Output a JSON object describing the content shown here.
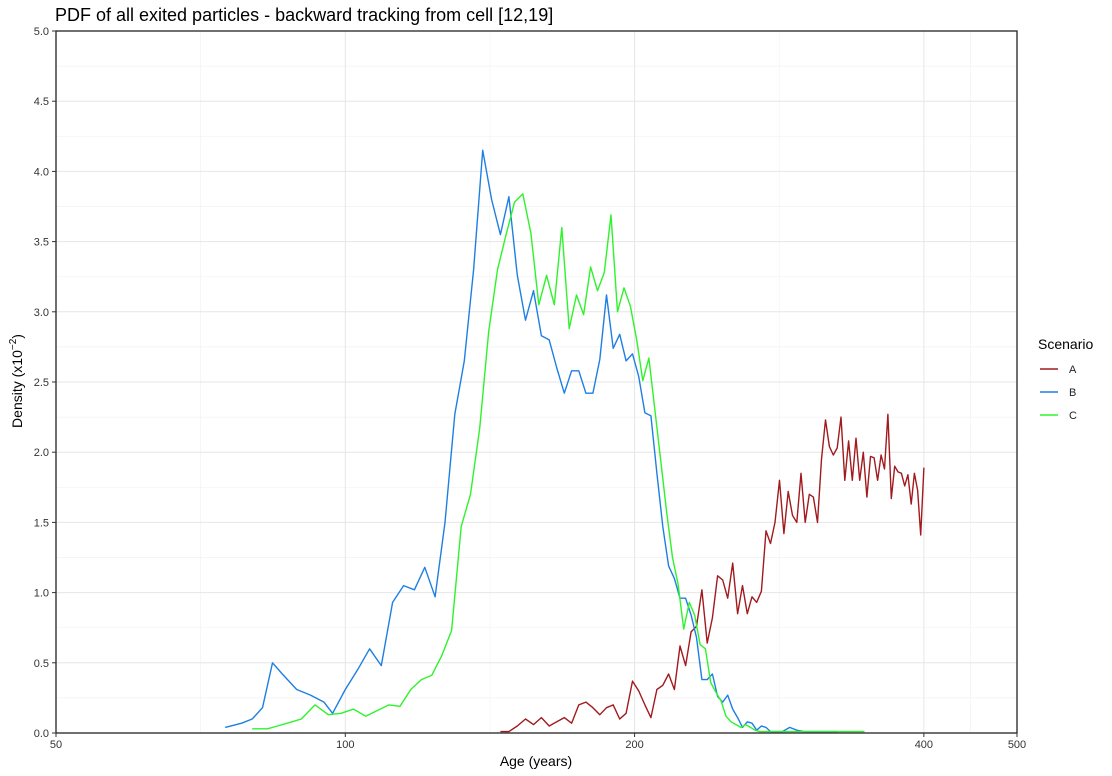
{
  "chart_data": {
    "type": "line",
    "title": "PDF of all exited particles - backward tracking from cell [12,19]",
    "xlabel": "Age (years)",
    "ylabel_main": "Density (x10",
    "ylabel_sup": "−2",
    "ylabel_end": ")",
    "x_scale": "log",
    "xlim": [
      50,
      500
    ],
    "ylim": [
      0,
      5
    ],
    "x_ticks": [
      50,
      100,
      200,
      400,
      500
    ],
    "x_tick_labels": [
      "50",
      "100",
      "200",
      "400",
      "500"
    ],
    "y_ticks": [
      0,
      0.5,
      1,
      1.5,
      2,
      2.5,
      3,
      3.5,
      4,
      4.5,
      5
    ],
    "y_tick_labels": [
      "0.0",
      "0.5",
      "1.0",
      "1.5",
      "2.0",
      "2.5",
      "3.0",
      "3.5",
      "4.0",
      "4.5",
      "5.0"
    ],
    "grid": true,
    "legend": {
      "title": "Scenario",
      "position": "right"
    },
    "series": [
      {
        "name": "A",
        "color": "#a11a1e",
        "points": [
          [
            145,
            0.01
          ],
          [
            148,
            0.01
          ],
          [
            151,
            0.05
          ],
          [
            154,
            0.1
          ],
          [
            157,
            0.06
          ],
          [
            160,
            0.11
          ],
          [
            163,
            0.05
          ],
          [
            166,
            0.08
          ],
          [
            169,
            0.11
          ],
          [
            172,
            0.07
          ],
          [
            175,
            0.2
          ],
          [
            178,
            0.22
          ],
          [
            181,
            0.18
          ],
          [
            184,
            0.13
          ],
          [
            187,
            0.18
          ],
          [
            190,
            0.2
          ],
          [
            193,
            0.1
          ],
          [
            196,
            0.14
          ],
          [
            199,
            0.37
          ],
          [
            202,
            0.3
          ],
          [
            205,
            0.2
          ],
          [
            208,
            0.11
          ],
          [
            211,
            0.31
          ],
          [
            214,
            0.34
          ],
          [
            217,
            0.42
          ],
          [
            220,
            0.31
          ],
          [
            223,
            0.62
          ],
          [
            226,
            0.48
          ],
          [
            229,
            0.72
          ],
          [
            232,
            0.76
          ],
          [
            235,
            1.02
          ],
          [
            238,
            0.64
          ],
          [
            241,
            0.82
          ],
          [
            244,
            1.12
          ],
          [
            247,
            1.09
          ],
          [
            250,
            0.96
          ],
          [
            253,
            1.21
          ],
          [
            256,
            0.85
          ],
          [
            259,
            1.05
          ],
          [
            262,
            0.85
          ],
          [
            265,
            0.97
          ],
          [
            268,
            0.93
          ],
          [
            271,
            1.01
          ],
          [
            274,
            1.44
          ],
          [
            277,
            1.35
          ],
          [
            280,
            1.5
          ],
          [
            283,
            1.8
          ],
          [
            286,
            1.42
          ],
          [
            289,
            1.72
          ],
          [
            292,
            1.55
          ],
          [
            295,
            1.5
          ],
          [
            298,
            1.85
          ],
          [
            301,
            1.5
          ],
          [
            304,
            1.7
          ],
          [
            307,
            1.68
          ],
          [
            310,
            1.5
          ],
          [
            313,
            1.95
          ],
          [
            316,
            2.23
          ],
          [
            319,
            2.04
          ],
          [
            322,
            1.98
          ],
          [
            325,
            2.03
          ],
          [
            328,
            2.25
          ],
          [
            331,
            1.8
          ],
          [
            334,
            2.08
          ],
          [
            337,
            1.8
          ],
          [
            340,
            2.1
          ],
          [
            343,
            1.8
          ],
          [
            346,
            2.0
          ],
          [
            349,
            1.68
          ],
          [
            352,
            1.97
          ],
          [
            355,
            1.96
          ],
          [
            358,
            1.8
          ],
          [
            361,
            1.98
          ],
          [
            364,
            1.88
          ],
          [
            367,
            2.27
          ],
          [
            370,
            1.67
          ],
          [
            373,
            1.9
          ],
          [
            376,
            1.86
          ],
          [
            379,
            1.85
          ],
          [
            382,
            1.76
          ],
          [
            385,
            1.84
          ],
          [
            388,
            1.63
          ],
          [
            391,
            1.85
          ],
          [
            394,
            1.73
          ],
          [
            397,
            1.41
          ],
          [
            400,
            1.89
          ]
        ]
      },
      {
        "name": "B",
        "color": "#1e7fe3",
        "points": [
          [
            75,
            0.04
          ],
          [
            78,
            0.07
          ],
          [
            80,
            0.1
          ],
          [
            82,
            0.18
          ],
          [
            84,
            0.5
          ],
          [
            86,
            0.42
          ],
          [
            89,
            0.31
          ],
          [
            92,
            0.27
          ],
          [
            95,
            0.22
          ],
          [
            97,
            0.14
          ],
          [
            100,
            0.31
          ],
          [
            103,
            0.45
          ],
          [
            106,
            0.6
          ],
          [
            109,
            0.48
          ],
          [
            112,
            0.93
          ],
          [
            115,
            1.05
          ],
          [
            118,
            1.02
          ],
          [
            121,
            1.18
          ],
          [
            124,
            0.97
          ],
          [
            127,
            1.5
          ],
          [
            130,
            2.27
          ],
          [
            133,
            2.65
          ],
          [
            136,
            3.3
          ],
          [
            139,
            4.15
          ],
          [
            142,
            3.8
          ],
          [
            145,
            3.55
          ],
          [
            148,
            3.82
          ],
          [
            151,
            3.26
          ],
          [
            154,
            2.94
          ],
          [
            157,
            3.15
          ],
          [
            160,
            2.83
          ],
          [
            163,
            2.8
          ],
          [
            166,
            2.6
          ],
          [
            169,
            2.42
          ],
          [
            172,
            2.58
          ],
          [
            175,
            2.58
          ],
          [
            178,
            2.42
          ],
          [
            181,
            2.42
          ],
          [
            184,
            2.66
          ],
          [
            187,
            3.12
          ],
          [
            190,
            2.74
          ],
          [
            193,
            2.84
          ],
          [
            196,
            2.65
          ],
          [
            199,
            2.7
          ],
          [
            202,
            2.54
          ],
          [
            205,
            2.28
          ],
          [
            208,
            2.26
          ],
          [
            211,
            1.85
          ],
          [
            214,
            1.47
          ],
          [
            217,
            1.19
          ],
          [
            220,
            1.1
          ],
          [
            223,
            0.96
          ],
          [
            226,
            0.96
          ],
          [
            229,
            0.84
          ],
          [
            232,
            0.68
          ],
          [
            235,
            0.38
          ],
          [
            238,
            0.38
          ],
          [
            241,
            0.42
          ],
          [
            244,
            0.26
          ],
          [
            247,
            0.22
          ],
          [
            250,
            0.27
          ],
          [
            253,
            0.17
          ],
          [
            256,
            0.11
          ],
          [
            259,
            0.04
          ],
          [
            262,
            0.08
          ],
          [
            265,
            0.07
          ],
          [
            268,
            0.02
          ],
          [
            271,
            0.05
          ],
          [
            274,
            0.04
          ],
          [
            277,
            0.01
          ],
          [
            285,
            0.01
          ],
          [
            290,
            0.04
          ],
          [
            295,
            0.02
          ],
          [
            300,
            0.01
          ],
          [
            325,
            0.01
          ]
        ]
      },
      {
        "name": "C",
        "color": "#2ef32a",
        "points": [
          [
            80,
            0.03
          ],
          [
            83,
            0.03
          ],
          [
            85,
            0.05
          ],
          [
            88,
            0.08
          ],
          [
            90,
            0.1
          ],
          [
            93,
            0.2
          ],
          [
            96,
            0.13
          ],
          [
            99,
            0.14
          ],
          [
            102,
            0.17
          ],
          [
            105,
            0.12
          ],
          [
            108,
            0.16
          ],
          [
            111,
            0.2
          ],
          [
            114,
            0.19
          ],
          [
            117,
            0.31
          ],
          [
            120,
            0.38
          ],
          [
            123,
            0.41
          ],
          [
            126,
            0.55
          ],
          [
            129,
            0.73
          ],
          [
            132,
            1.47
          ],
          [
            135,
            1.7
          ],
          [
            138,
            2.17
          ],
          [
            141,
            2.86
          ],
          [
            144,
            3.3
          ],
          [
            147,
            3.55
          ],
          [
            150,
            3.78
          ],
          [
            153,
            3.84
          ],
          [
            156,
            3.56
          ],
          [
            159,
            3.05
          ],
          [
            162,
            3.26
          ],
          [
            165,
            3.05
          ],
          [
            168,
            3.6
          ],
          [
            171,
            2.88
          ],
          [
            174,
            3.12
          ],
          [
            177,
            2.98
          ],
          [
            180,
            3.32
          ],
          [
            183,
            3.15
          ],
          [
            186,
            3.28
          ],
          [
            189,
            3.69
          ],
          [
            192,
            3.0
          ],
          [
            195,
            3.17
          ],
          [
            198,
            3.04
          ],
          [
            201,
            2.8
          ],
          [
            204,
            2.51
          ],
          [
            207,
            2.67
          ],
          [
            210,
            2.3
          ],
          [
            213,
            1.93
          ],
          [
            216,
            1.57
          ],
          [
            219,
            1.25
          ],
          [
            222,
            1.06
          ],
          [
            225,
            0.74
          ],
          [
            228,
            0.93
          ],
          [
            231,
            0.84
          ],
          [
            234,
            0.63
          ],
          [
            237,
            0.6
          ],
          [
            240,
            0.36
          ],
          [
            243,
            0.29
          ],
          [
            246,
            0.23
          ],
          [
            249,
            0.12
          ],
          [
            252,
            0.08
          ],
          [
            255,
            0.06
          ],
          [
            258,
            0.04
          ],
          [
            261,
            0.06
          ],
          [
            264,
            0.04
          ],
          [
            267,
            0.02
          ],
          [
            270,
            0.01
          ],
          [
            280,
            0.01
          ],
          [
            290,
            0.01
          ],
          [
            300,
            0.01
          ],
          [
            320,
            0.01
          ],
          [
            330,
            0.01
          ],
          [
            340,
            0.01
          ],
          [
            347,
            0.01
          ]
        ]
      }
    ]
  }
}
